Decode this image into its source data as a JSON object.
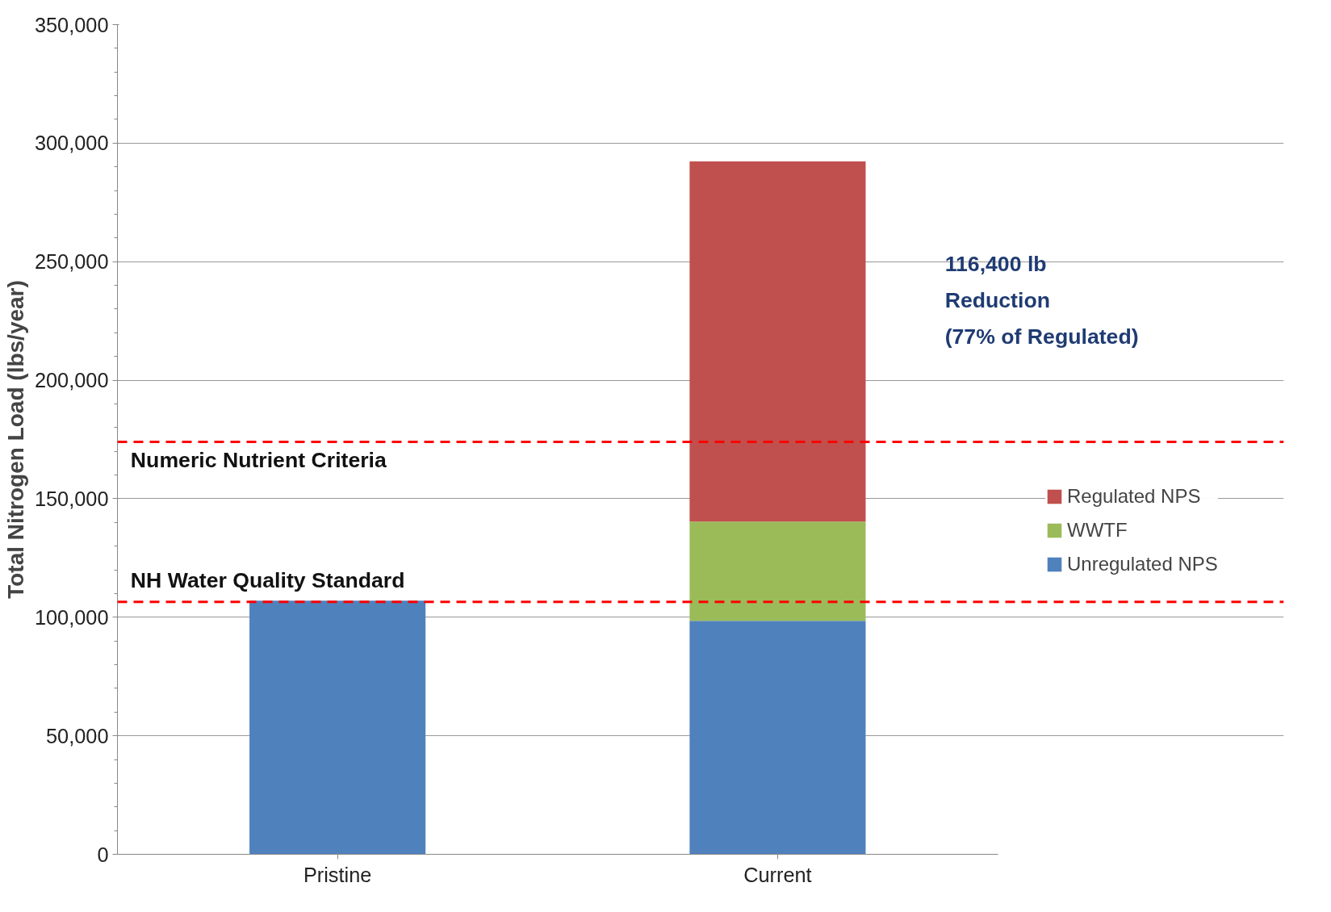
{
  "chart_data": {
    "type": "bar",
    "stacked": true,
    "ylabel": "Total Nitrogen Load (lbs/year)",
    "categories": [
      "Pristine",
      "Current"
    ],
    "series": [
      {
        "name": "Unregulated NPS",
        "color": "#4f81bd",
        "values": [
          107000,
          98500
        ]
      },
      {
        "name": "WWTF",
        "color": "#9bbb59",
        "values": [
          null,
          41900
        ]
      },
      {
        "name": "Regulated NPS",
        "color": "#c0504d",
        "values": [
          null,
          151900
        ]
      }
    ],
    "ylim": [
      0,
      350000
    ],
    "yticks": [
      {
        "value": 0,
        "label": "0"
      },
      {
        "value": 50000,
        "label": "50,000"
      },
      {
        "value": 100000,
        "label": "100,000"
      },
      {
        "value": 150000,
        "label": "150,000"
      },
      {
        "value": 200000,
        "label": "200,000"
      },
      {
        "value": 250000,
        "label": "250,000"
      },
      {
        "value": 300000,
        "label": "300,000"
      },
      {
        "value": 350000,
        "label": "350,000"
      }
    ],
    "grid": "y",
    "legend": "right",
    "ref_lines": [
      {
        "axis": "y",
        "value": 174000,
        "label": "Numeric Nutrient Criteria",
        "color": "#ff0000",
        "line_style": "dashed"
      },
      {
        "axis": "y",
        "value": 106500,
        "label": "NH Water Quality Standard",
        "color": "#ff0000",
        "line_style": "dashed"
      }
    ],
    "annotations": [
      "116,400 lb\nReduction\n(77% of Regulated)"
    ]
  }
}
